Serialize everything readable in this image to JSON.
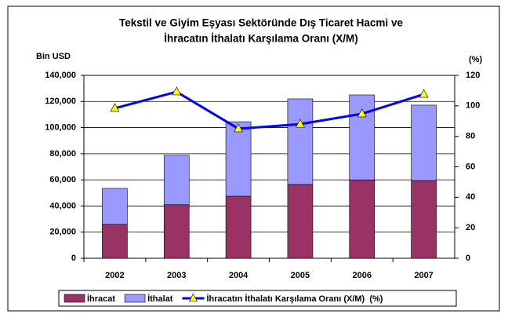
{
  "chart_data": {
    "type": "bar",
    "title": [
      "Tekstil ve Giyim Eşyası Sektöründe Dış Ticaret Hacmi ve",
      "İhracatın İthalatı Karşılama Oranı (X/M)"
    ],
    "ylabel": "Bin USD",
    "y2label": "(%)",
    "categories": [
      "2002",
      "2003",
      "2004",
      "2005",
      "2006",
      "2007"
    ],
    "series": [
      {
        "name": "İhracat",
        "color": "#993366",
        "values": [
          26000,
          41000,
          47500,
          56500,
          60000,
          59500
        ]
      },
      {
        "name": "İthalat",
        "color": "#9999ff",
        "values": [
          27500,
          37800,
          57000,
          65500,
          65000,
          57700
        ]
      },
      {
        "name": "İhracatın İthalatı Karşılama Oranı (X/M)  (%)",
        "color": "#0000ff",
        "marker_color": "#ffff00",
        "axis": "y2",
        "type": "line",
        "values": [
          98.4,
          109.2,
          85,
          88,
          94.8,
          107.6
        ]
      }
    ],
    "ylim": [
      0,
      140000
    ],
    "yticks": [
      0,
      {
        "value": 20000,
        "label": "20,000"
      },
      {
        "value": 40000,
        "label": "40,000"
      },
      {
        "value": 60000,
        "label": "60,000"
      },
      {
        "value": 80000,
        "label": "80,000"
      },
      {
        "value": 100000,
        "label": "100,000"
      },
      {
        "value": 120000,
        "label": "120,000"
      },
      {
        "value": 140000,
        "label": "140,000"
      }
    ],
    "y2lim": [
      0,
      120
    ],
    "y2ticks": [
      0,
      20,
      40,
      60,
      80,
      100,
      120
    ],
    "grid": true,
    "legend": "bottom"
  }
}
